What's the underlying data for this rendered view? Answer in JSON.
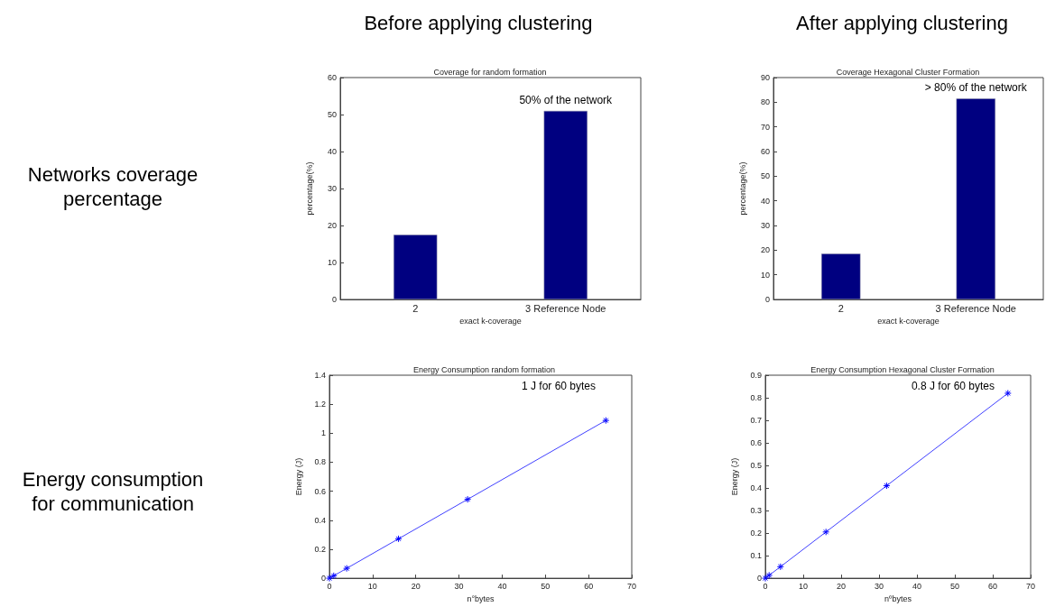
{
  "chart_data": [
    {
      "type": "bar",
      "title": "Coverage for random formation",
      "xlabel": "exact k-coverage",
      "ylabel": "percentage(%)",
      "categories": [
        "2",
        "3 Reference Node"
      ],
      "values": [
        17.5,
        51
      ],
      "color": "#000080",
      "ylim": [
        0,
        60
      ],
      "yticks": [
        0,
        10,
        20,
        30,
        40,
        50,
        60
      ],
      "grid": false,
      "annotations": [
        {
          "text": "50% of the network",
          "x": "3 Reference Node",
          "y": 51
        }
      ]
    },
    {
      "type": "bar",
      "title": "Coverage Hexagonal Cluster Formation",
      "xlabel": "exact k-coverage",
      "ylabel": "percentage(%)",
      "categories": [
        "2",
        "3 Reference Node"
      ],
      "values": [
        18.6,
        81.5
      ],
      "color": "#000080",
      "ylim": [
        0,
        90
      ],
      "yticks": [
        0,
        10,
        20,
        30,
        40,
        50,
        60,
        70,
        80,
        90
      ],
      "grid": false,
      "annotations": [
        {
          "text": "> 80% of the network",
          "x": "3 Reference Node",
          "y": 81.5
        }
      ]
    },
    {
      "type": "line",
      "title": "Energy Consumption random formation",
      "xlabel": "n°bytes",
      "ylabel": "Energy (J)",
      "x": [
        0,
        1,
        4,
        16,
        32,
        64
      ],
      "values": [
        0,
        0.017,
        0.068,
        0.272,
        0.544,
        1.088
      ],
      "color": "#4040ff",
      "marker": "cross",
      "xlim": [
        0,
        70
      ],
      "xticks": [
        0,
        10,
        20,
        30,
        40,
        50,
        60,
        70
      ],
      "ylim": [
        0,
        1.4
      ],
      "yticks": [
        0,
        0.2,
        0.4,
        0.6,
        0.8,
        1,
        1.2,
        1.4
      ],
      "grid": false,
      "annotations": [
        "1 J for 60 bytes"
      ]
    },
    {
      "type": "line",
      "title": "Energy Consumption Hexagonal Cluster Formation",
      "xlabel": "nºbytes",
      "ylabel": "Energy (J)",
      "x": [
        0,
        1,
        4,
        16,
        32,
        64
      ],
      "values": [
        0,
        0.013,
        0.051,
        0.205,
        0.41,
        0.82
      ],
      "color": "#4040ff",
      "marker": "cross",
      "xlim": [
        0,
        70
      ],
      "xticks": [
        0,
        10,
        20,
        30,
        40,
        50,
        60,
        70
      ],
      "ylim": [
        0,
        0.9
      ],
      "yticks": [
        0,
        0.1,
        0.2,
        0.3,
        0.4,
        0.5,
        0.6,
        0.7,
        0.8,
        0.9
      ],
      "grid": false,
      "annotations": [
        "0.8 J for 60 bytes"
      ]
    },
    {
      "type": "other",
      "annotations": [
        "Before applying clustering",
        "After applying clustering",
        "Networks coverage percentage",
        "Energy consumption for communication"
      ]
    }
  ]
}
